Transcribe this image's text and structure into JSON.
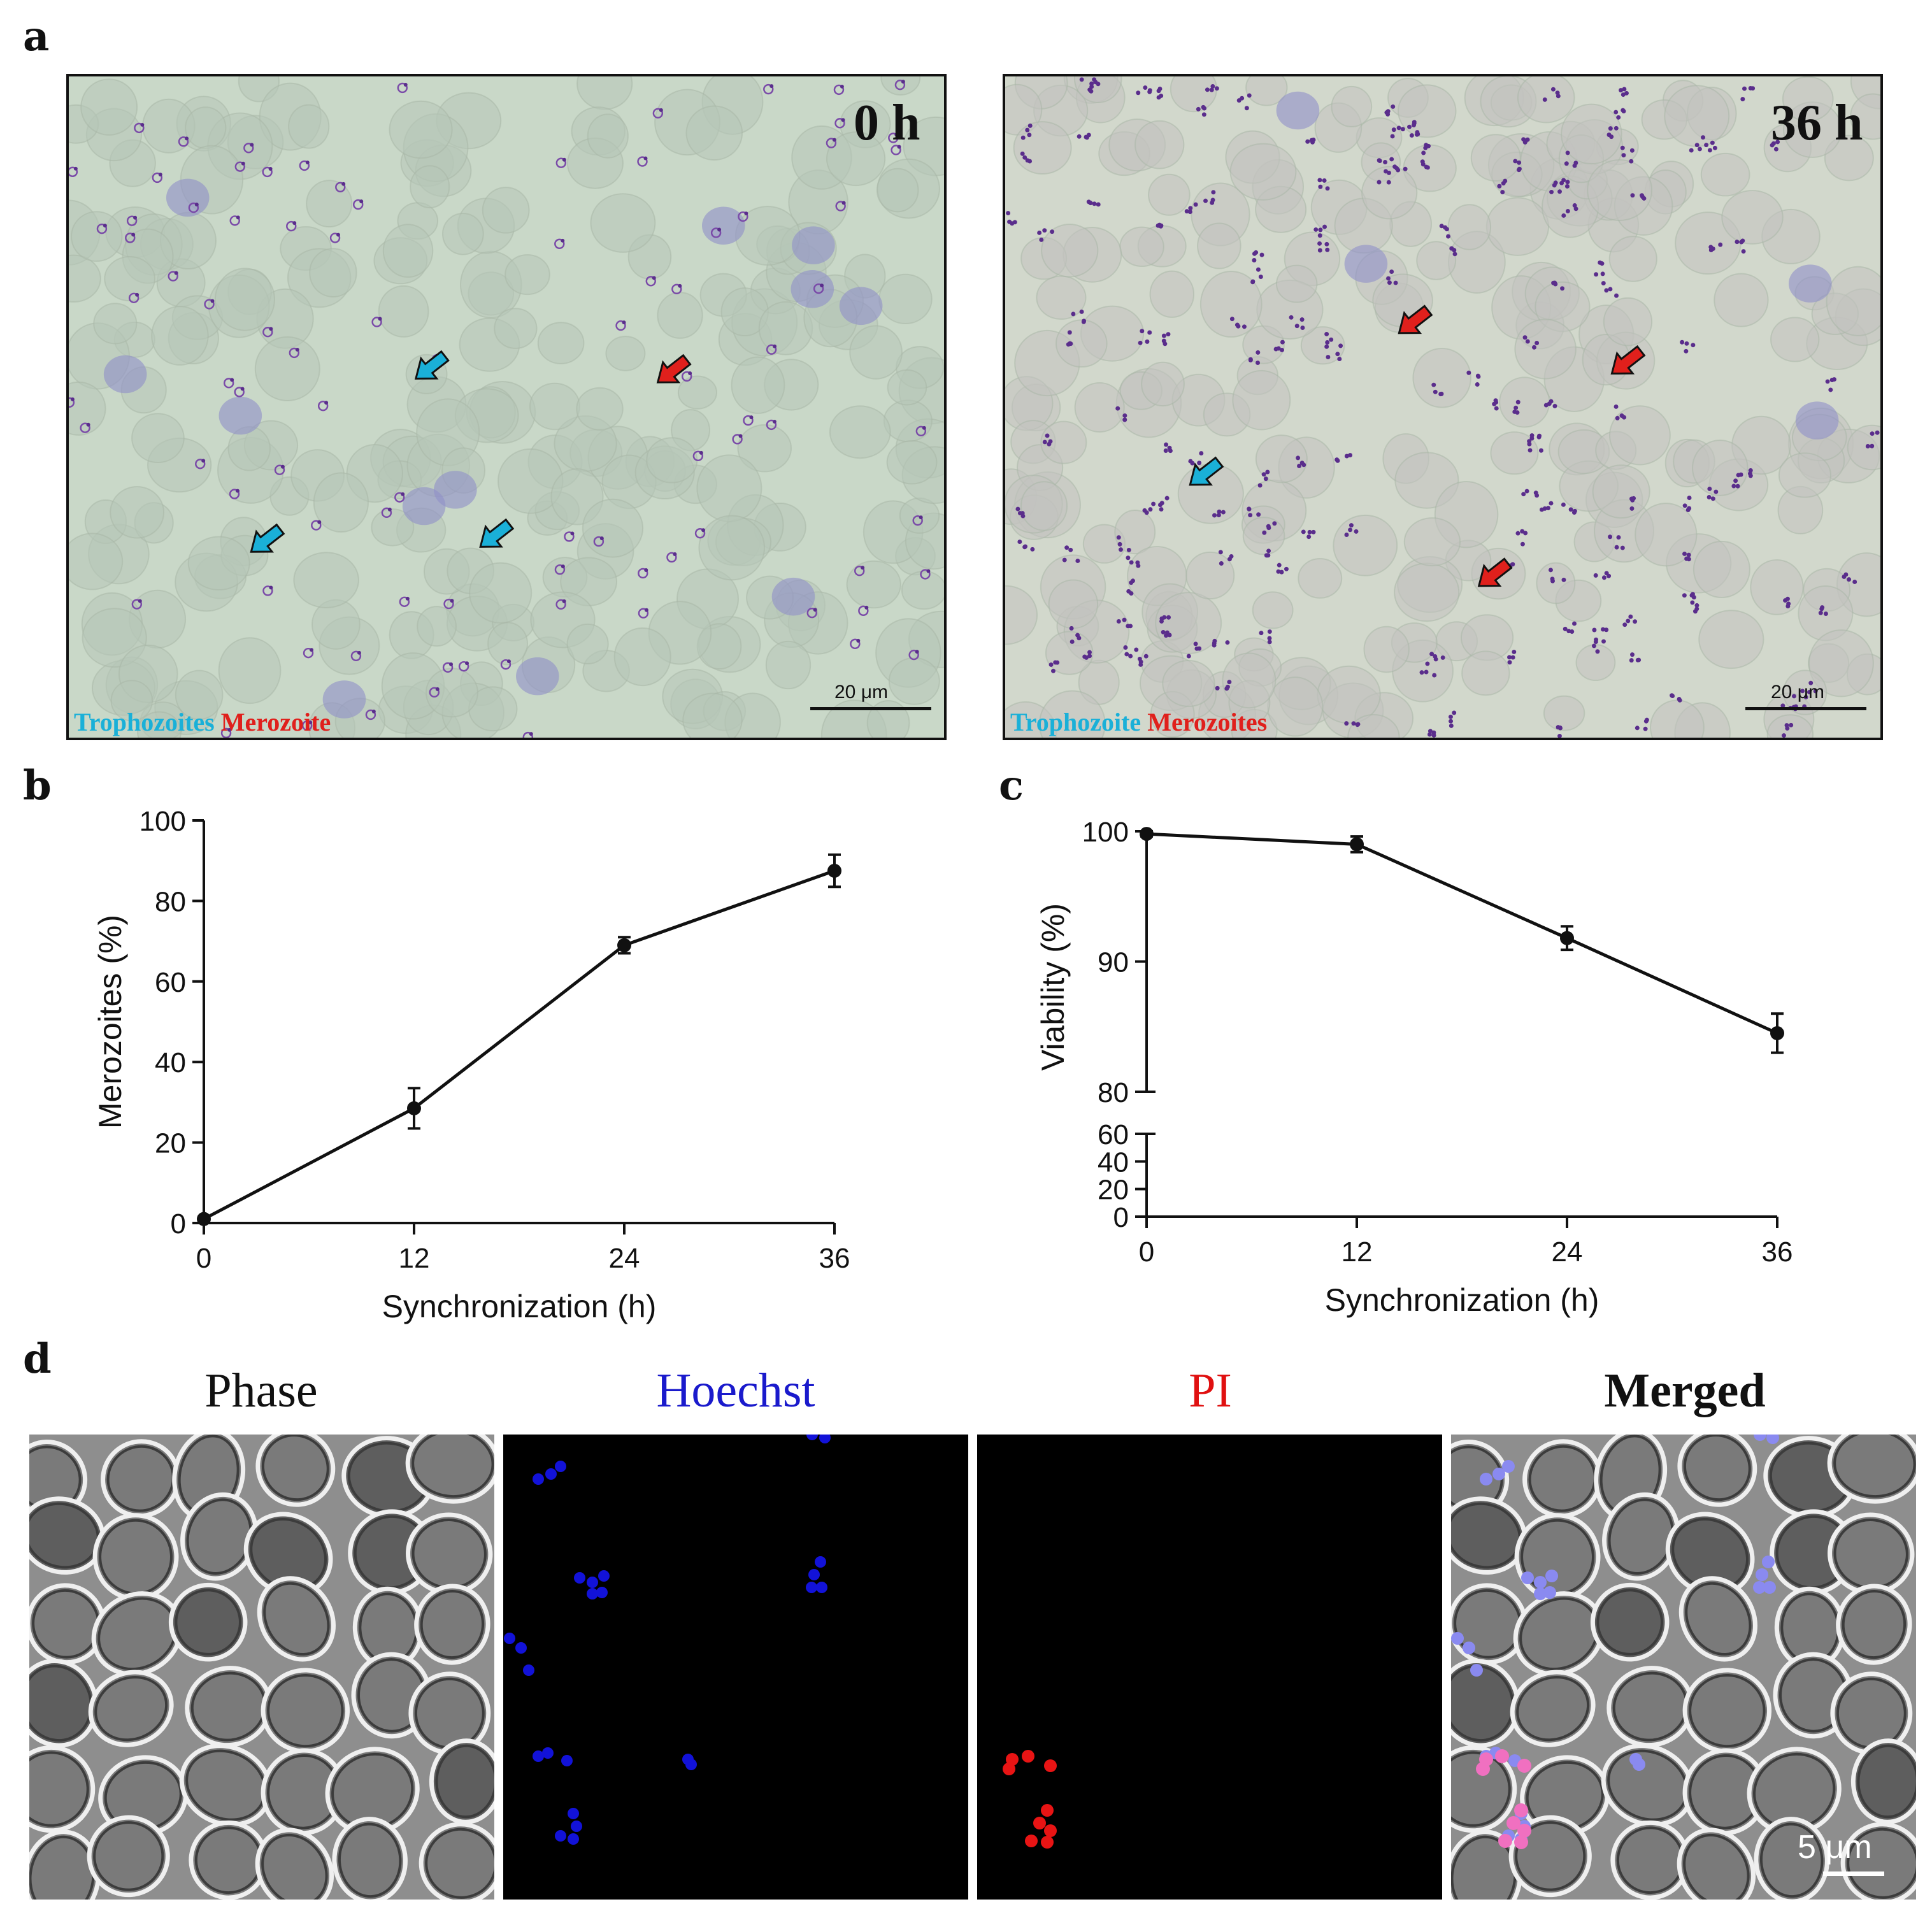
{
  "panel_letters": {
    "a": "a",
    "b": "b",
    "c": "c",
    "d": "d"
  },
  "panel_a": {
    "left": {
      "time": "0 h",
      "legend_blue": "Trophozoites",
      "legend_red": "Merozoite",
      "scale": "20 μm"
    },
    "right": {
      "time": "36 h",
      "legend_blue": "Trophozoite",
      "legend_red": "Merozoites",
      "scale": "20 μm"
    }
  },
  "panel_d": {
    "titles": [
      "Phase",
      "Hoechst",
      "PI",
      "Merged"
    ],
    "scale": "5 μm"
  },
  "colors": {
    "blue_label": "#1ab0d8",
    "red_label": "#e0201c",
    "hoechst": "#1010d0",
    "pi": "#e01010"
  },
  "chart_data": [
    {
      "type": "line",
      "x": [
        0,
        12,
        24,
        36
      ],
      "values": [
        1,
        28.5,
        69,
        87.5
      ],
      "errors": [
        0.5,
        5,
        2,
        4
      ],
      "xlabel": "Synchronization (h)",
      "ylabel": "Merozoites (%)",
      "xticks": [
        "0",
        "12",
        "24",
        "36"
      ],
      "yticks": [
        "0",
        "20",
        "40",
        "60",
        "80",
        "100"
      ],
      "xlim": [
        0,
        36
      ],
      "ylim": [
        0,
        100
      ]
    },
    {
      "type": "line",
      "x": [
        0,
        12,
        24,
        36
      ],
      "values": [
        99.8,
        99,
        91.8,
        84.5
      ],
      "errors": [
        0.2,
        0.6,
        0.9,
        1.5
      ],
      "xlabel": "Synchronization (h)",
      "ylabel": "Viability (%)",
      "xticks": [
        "0",
        "12",
        "24",
        "36"
      ],
      "yticks_upper": [
        "80",
        "90",
        "100"
      ],
      "yticks_lower": [
        "0",
        "20",
        "40",
        "60"
      ],
      "ylim_upper": [
        80,
        100
      ],
      "ylim_lower": [
        0,
        60
      ],
      "axis_break": true
    }
  ]
}
